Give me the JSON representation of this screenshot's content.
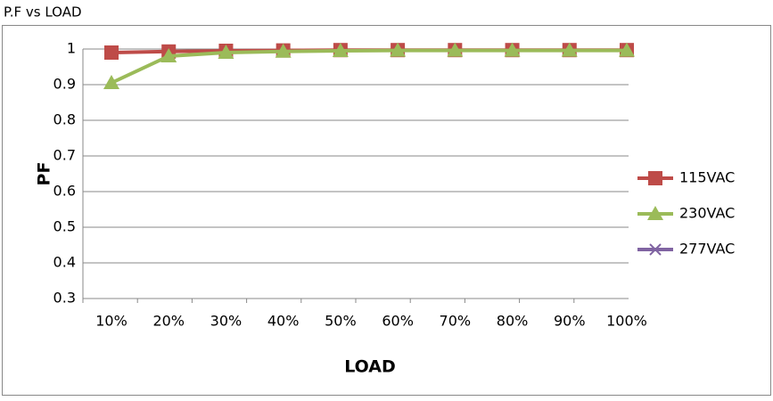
{
  "chart_data": {
    "type": "line",
    "title": "P.F vs LOAD",
    "x_label": "LOAD",
    "y_label": "PF",
    "categories": [
      "10%",
      "20%",
      "30%",
      "40%",
      "50%",
      "60%",
      "70%",
      "80%",
      "90%",
      "100%"
    ],
    "series": [
      {
        "name": "115VAC",
        "color": "#be4b48",
        "marker": "square",
        "values": [
          0.99,
          0.993,
          0.995,
          0.996,
          0.997,
          0.997,
          0.997,
          0.997,
          0.997,
          0.997
        ]
      },
      {
        "name": "230VAC",
        "color": "#9bbb59",
        "marker": "triangle",
        "values": [
          0.905,
          0.98,
          0.99,
          0.993,
          0.995,
          0.996,
          0.996,
          0.996,
          0.996,
          0.996
        ]
      },
      {
        "name": "277VAC",
        "color": "#8064a2",
        "marker": "x",
        "values": [
          null,
          null,
          null,
          null,
          null,
          null,
          null,
          null,
          null,
          null
        ]
      }
    ],
    "ylim": [
      0.3,
      1
    ],
    "yticks": [
      0.3,
      0.4,
      0.5,
      0.6,
      0.7,
      0.8,
      0.9,
      1
    ],
    "grid": true,
    "legend": "right"
  }
}
